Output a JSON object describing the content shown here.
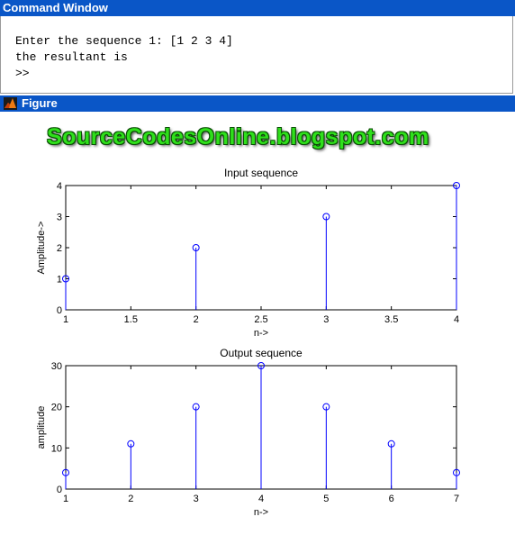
{
  "command_window": {
    "title": "Command Window",
    "lines": [
      "Enter the sequence 1: [1 2 3 4]",
      "the resultant is",
      ">>"
    ]
  },
  "figure_window": {
    "title": "Figure",
    "icon": "matlab-logo-icon",
    "watermark": "SourceCodesOnline.blogspot.com",
    "watermark_color": "#2fe01b",
    "title_bar_color": "#0a56c7"
  },
  "chart_data": [
    {
      "type": "stem",
      "title": "Input sequence",
      "xlabel": "n->",
      "ylabel": "Amplitude->",
      "x": [
        1,
        2,
        3,
        4
      ],
      "y": [
        1,
        2,
        3,
        4
      ],
      "xlim": [
        1,
        4
      ],
      "ylim": [
        0,
        4
      ],
      "xticks": [
        "1",
        "1.5",
        "2",
        "2.5",
        "3",
        "3.5",
        "4"
      ],
      "yticks": [
        "0",
        "1",
        "2",
        "3",
        "4"
      ],
      "color": "#0000ff"
    },
    {
      "type": "stem",
      "title": "Output sequence",
      "xlabel": "n->",
      "ylabel": "amplitude",
      "x": [
        1,
        2,
        3,
        4,
        5,
        6,
        7
      ],
      "y": [
        4,
        11,
        20,
        30,
        20,
        11,
        4
      ],
      "xlim": [
        1,
        7
      ],
      "ylim": [
        0,
        30
      ],
      "xticks": [
        "1",
        "2",
        "3",
        "4",
        "5",
        "6",
        "7"
      ],
      "yticks": [
        "0",
        "10",
        "20",
        "30"
      ],
      "color": "#0000ff"
    }
  ]
}
